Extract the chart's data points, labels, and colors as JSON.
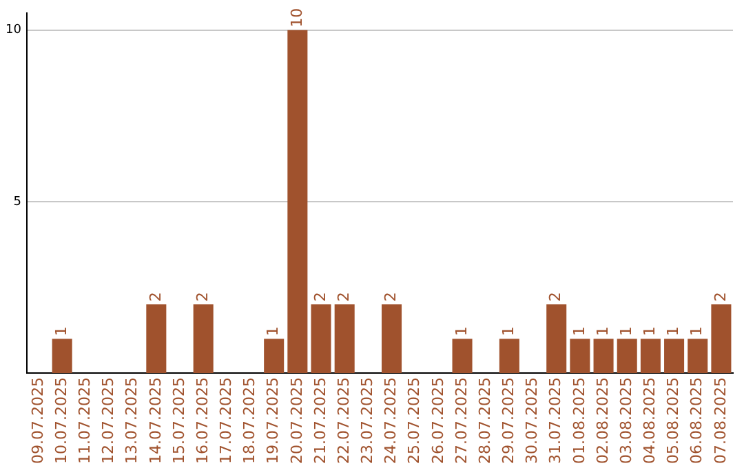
{
  "chart_data": {
    "type": "bar",
    "categories": [
      "09.07.2025",
      "10.07.2025",
      "11.07.2025",
      "12.07.2025",
      "13.07.2025",
      "14.07.2025",
      "15.07.2025",
      "16.07.2025",
      "17.07.2025",
      "18.07.2025",
      "19.07.2025",
      "20.07.2025",
      "21.07.2025",
      "22.07.2025",
      "23.07.2025",
      "24.07.2025",
      "25.07.2025",
      "26.07.2025",
      "27.07.2025",
      "28.07.2025",
      "29.07.2025",
      "30.07.2025",
      "31.07.2025",
      "01.08.2025",
      "02.08.2025",
      "03.08.2025",
      "04.08.2025",
      "05.08.2025",
      "06.08.2025",
      "07.08.2025"
    ],
    "values": [
      0,
      1,
      0,
      0,
      0,
      2,
      0,
      2,
      0,
      0,
      1,
      10,
      2,
      2,
      0,
      2,
      0,
      0,
      1,
      0,
      1,
      0,
      2,
      1,
      1,
      1,
      1,
      1,
      1,
      2
    ],
    "value_labels": [
      null,
      "1",
      null,
      null,
      null,
      "2",
      null,
      "2",
      null,
      null,
      "1",
      "10",
      "2",
      "2",
      null,
      "2",
      null,
      null,
      "1",
      null,
      "1",
      null,
      "2",
      "1",
      "1",
      "1",
      "1",
      "1",
      "1",
      "2"
    ],
    "color": "#a0522d",
    "ylim": [
      0,
      10.5
    ],
    "yticks": [
      5,
      10
    ],
    "grid": "y",
    "legend": false
  }
}
